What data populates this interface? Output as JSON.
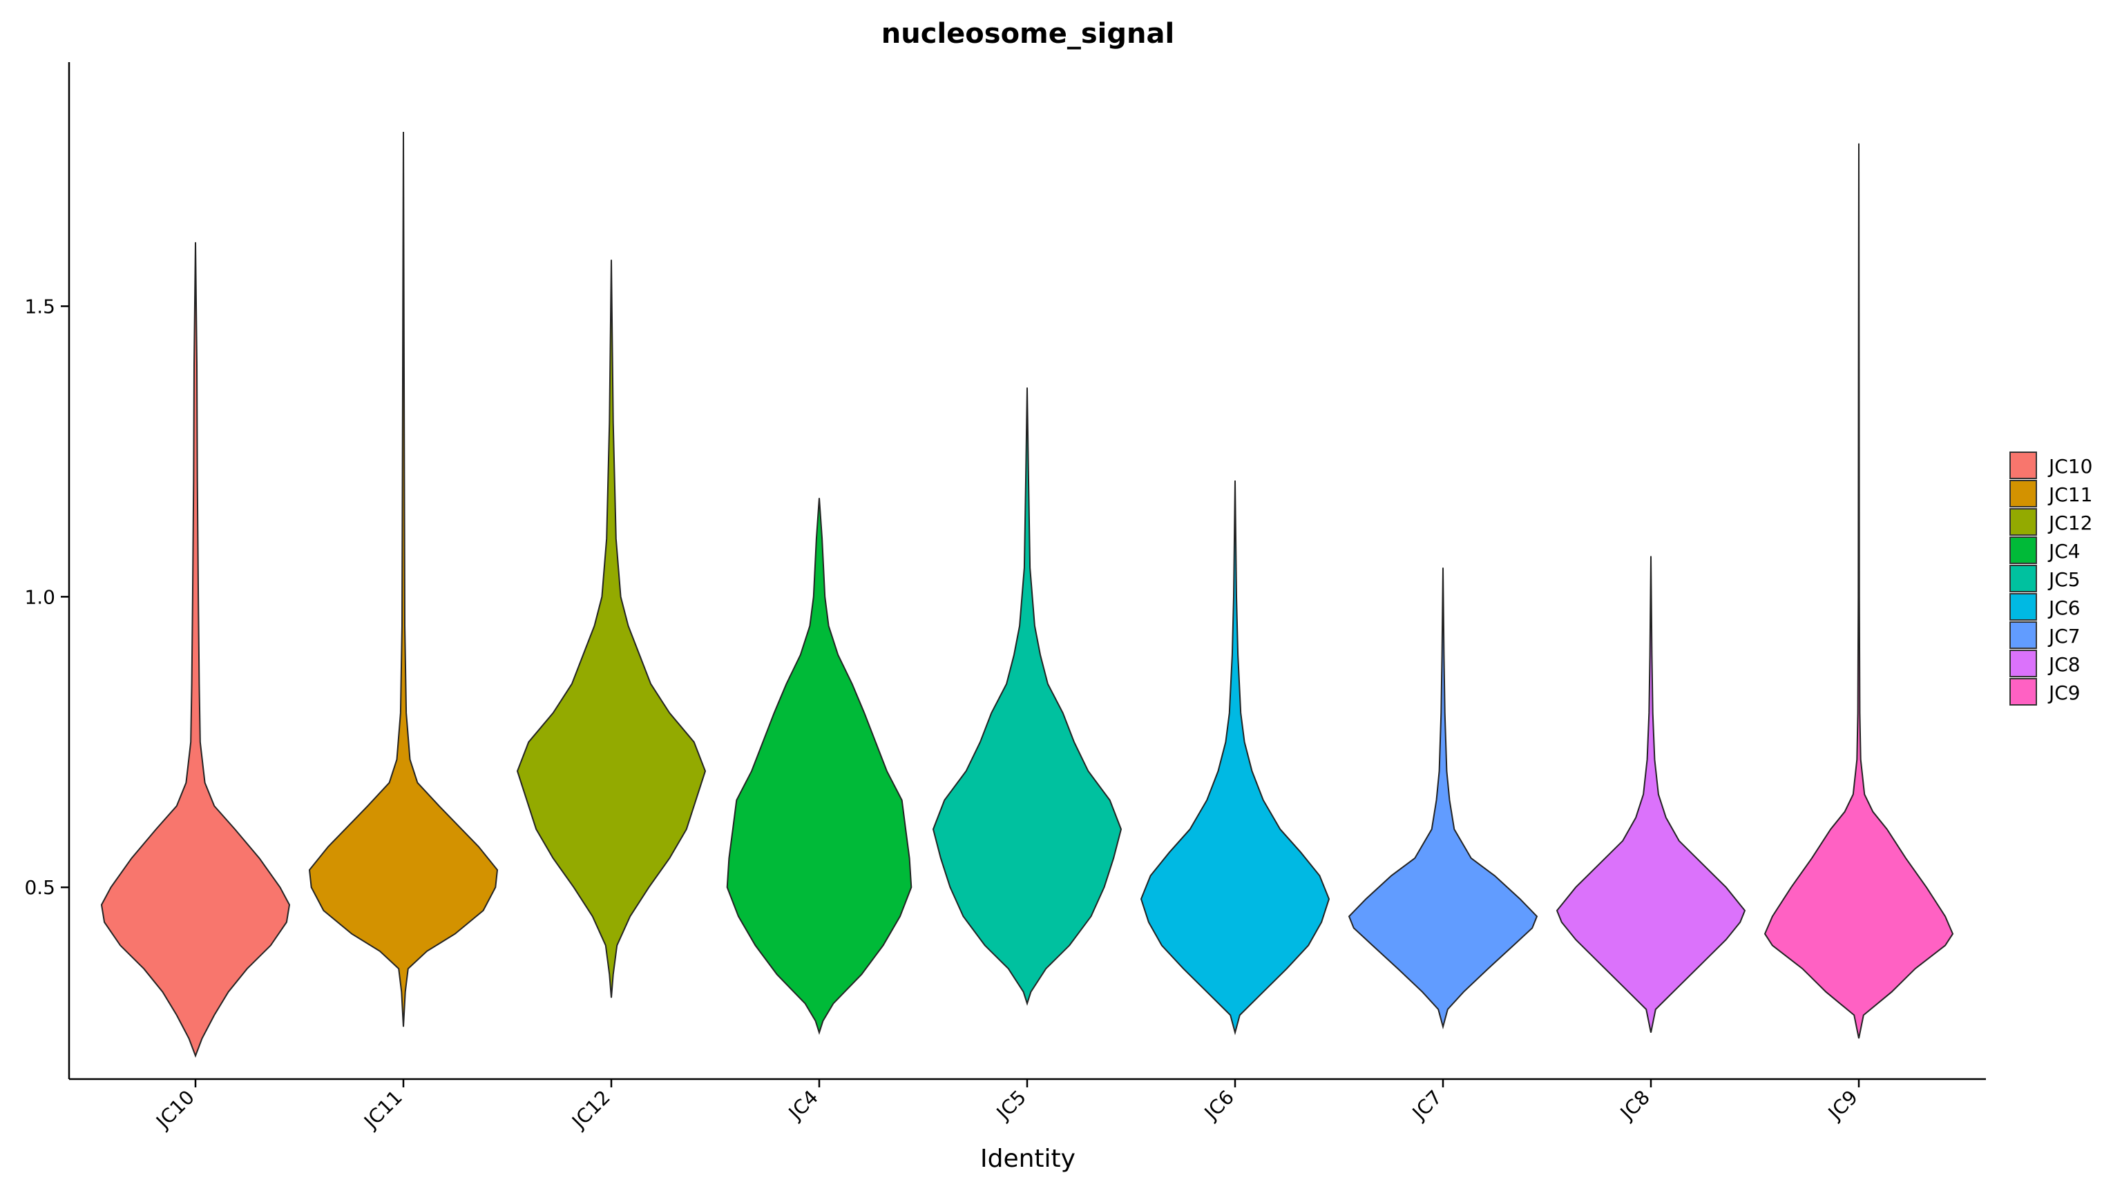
{
  "chart_data": {
    "type": "violin",
    "title": "nucleosome_signal",
    "xlabel": "Identity",
    "ylabel": "",
    "ylim": [
      0.17,
      1.92
    ],
    "yticks": [
      0.5,
      1.0,
      1.5
    ],
    "ytick_labels": [
      "0.5",
      "1.0",
      "1.5"
    ],
    "legend_position": "right",
    "grid": false,
    "categories": [
      "JC10",
      "JC11",
      "JC12",
      "JC4",
      "JC5",
      "JC6",
      "JC7",
      "JC8",
      "JC9"
    ],
    "colors": [
      "#F8766D",
      "#D39200",
      "#93AA00",
      "#00BA38",
      "#00C19F",
      "#00B9E3",
      "#619CFF",
      "#DB72FB",
      "#FF61C3"
    ],
    "legend": [
      "JC10",
      "JC11",
      "JC12",
      "JC4",
      "JC5",
      "JC6",
      "JC7",
      "JC8",
      "JC9"
    ],
    "series": [
      {
        "name": "JC10",
        "min": 0.21,
        "max": 1.61,
        "profile": [
          [
            0.21,
            0.0
          ],
          [
            0.24,
            0.07
          ],
          [
            0.28,
            0.2
          ],
          [
            0.32,
            0.35
          ],
          [
            0.36,
            0.55
          ],
          [
            0.4,
            0.8
          ],
          [
            0.44,
            0.97
          ],
          [
            0.47,
            1.0
          ],
          [
            0.5,
            0.9
          ],
          [
            0.55,
            0.68
          ],
          [
            0.6,
            0.42
          ],
          [
            0.64,
            0.2
          ],
          [
            0.68,
            0.1
          ],
          [
            0.75,
            0.05
          ],
          [
            0.85,
            0.04
          ],
          [
            1.0,
            0.03
          ],
          [
            1.2,
            0.02
          ],
          [
            1.4,
            0.015
          ],
          [
            1.61,
            0.0
          ]
        ]
      },
      {
        "name": "JC11",
        "min": 0.26,
        "max": 1.8,
        "profile": [
          [
            0.26,
            0.0
          ],
          [
            0.32,
            0.02
          ],
          [
            0.36,
            0.05
          ],
          [
            0.39,
            0.25
          ],
          [
            0.42,
            0.55
          ],
          [
            0.46,
            0.85
          ],
          [
            0.5,
            0.98
          ],
          [
            0.53,
            1.0
          ],
          [
            0.57,
            0.8
          ],
          [
            0.6,
            0.62
          ],
          [
            0.64,
            0.38
          ],
          [
            0.68,
            0.15
          ],
          [
            0.72,
            0.07
          ],
          [
            0.8,
            0.03
          ],
          [
            0.95,
            0.015
          ],
          [
            1.2,
            0.01
          ],
          [
            1.5,
            0.005
          ],
          [
            1.8,
            0.0
          ]
        ]
      },
      {
        "name": "JC12",
        "min": 0.31,
        "max": 1.58,
        "profile": [
          [
            0.31,
            0.0
          ],
          [
            0.35,
            0.02
          ],
          [
            0.4,
            0.06
          ],
          [
            0.45,
            0.2
          ],
          [
            0.5,
            0.4
          ],
          [
            0.55,
            0.62
          ],
          [
            0.6,
            0.8
          ],
          [
            0.65,
            0.9
          ],
          [
            0.7,
            1.0
          ],
          [
            0.75,
            0.88
          ],
          [
            0.8,
            0.62
          ],
          [
            0.85,
            0.42
          ],
          [
            0.9,
            0.3
          ],
          [
            0.95,
            0.18
          ],
          [
            1.0,
            0.1
          ],
          [
            1.1,
            0.05
          ],
          [
            1.3,
            0.02
          ],
          [
            1.58,
            0.0
          ]
        ]
      },
      {
        "name": "JC4",
        "min": 0.25,
        "max": 1.17,
        "profile": [
          [
            0.25,
            0.0
          ],
          [
            0.27,
            0.04
          ],
          [
            0.3,
            0.15
          ],
          [
            0.35,
            0.45
          ],
          [
            0.4,
            0.68
          ],
          [
            0.45,
            0.86
          ],
          [
            0.5,
            0.98
          ],
          [
            0.55,
            0.96
          ],
          [
            0.6,
            0.92
          ],
          [
            0.65,
            0.88
          ],
          [
            0.7,
            0.72
          ],
          [
            0.75,
            0.6
          ],
          [
            0.8,
            0.48
          ],
          [
            0.85,
            0.35
          ],
          [
            0.9,
            0.2
          ],
          [
            0.95,
            0.1
          ],
          [
            1.0,
            0.06
          ],
          [
            1.1,
            0.03
          ],
          [
            1.17,
            0.0
          ]
        ]
      },
      {
        "name": "JC5",
        "min": 0.3,
        "max": 1.36,
        "profile": [
          [
            0.3,
            0.0
          ],
          [
            0.32,
            0.04
          ],
          [
            0.36,
            0.2
          ],
          [
            0.4,
            0.45
          ],
          [
            0.45,
            0.68
          ],
          [
            0.5,
            0.82
          ],
          [
            0.55,
            0.92
          ],
          [
            0.6,
            1.0
          ],
          [
            0.65,
            0.88
          ],
          [
            0.7,
            0.65
          ],
          [
            0.75,
            0.5
          ],
          [
            0.8,
            0.38
          ],
          [
            0.85,
            0.22
          ],
          [
            0.9,
            0.14
          ],
          [
            0.95,
            0.08
          ],
          [
            1.05,
            0.03
          ],
          [
            1.2,
            0.015
          ],
          [
            1.36,
            0.0
          ]
        ]
      },
      {
        "name": "JC6",
        "min": 0.25,
        "max": 1.2,
        "profile": [
          [
            0.25,
            0.0
          ],
          [
            0.28,
            0.05
          ],
          [
            0.32,
            0.3
          ],
          [
            0.36,
            0.55
          ],
          [
            0.4,
            0.78
          ],
          [
            0.44,
            0.92
          ],
          [
            0.48,
            1.0
          ],
          [
            0.52,
            0.9
          ],
          [
            0.56,
            0.7
          ],
          [
            0.6,
            0.48
          ],
          [
            0.65,
            0.3
          ],
          [
            0.7,
            0.18
          ],
          [
            0.75,
            0.1
          ],
          [
            0.8,
            0.06
          ],
          [
            0.9,
            0.03
          ],
          [
            1.0,
            0.015
          ],
          [
            1.2,
            0.0
          ]
        ]
      },
      {
        "name": "JC7",
        "min": 0.26,
        "max": 1.05,
        "profile": [
          [
            0.26,
            0.0
          ],
          [
            0.29,
            0.05
          ],
          [
            0.32,
            0.22
          ],
          [
            0.36,
            0.48
          ],
          [
            0.4,
            0.75
          ],
          [
            0.43,
            0.95
          ],
          [
            0.45,
            1.0
          ],
          [
            0.48,
            0.82
          ],
          [
            0.52,
            0.55
          ],
          [
            0.55,
            0.3
          ],
          [
            0.6,
            0.12
          ],
          [
            0.65,
            0.07
          ],
          [
            0.7,
            0.04
          ],
          [
            0.8,
            0.02
          ],
          [
            0.9,
            0.01
          ],
          [
            1.05,
            0.0
          ]
        ]
      },
      {
        "name": "JC8",
        "min": 0.25,
        "max": 1.07,
        "profile": [
          [
            0.25,
            0.0
          ],
          [
            0.29,
            0.05
          ],
          [
            0.33,
            0.3
          ],
          [
            0.37,
            0.55
          ],
          [
            0.41,
            0.8
          ],
          [
            0.44,
            0.95
          ],
          [
            0.46,
            1.0
          ],
          [
            0.5,
            0.8
          ],
          [
            0.54,
            0.55
          ],
          [
            0.58,
            0.3
          ],
          [
            0.62,
            0.16
          ],
          [
            0.66,
            0.08
          ],
          [
            0.72,
            0.04
          ],
          [
            0.8,
            0.02
          ],
          [
            0.9,
            0.01
          ],
          [
            1.07,
            0.0
          ]
        ]
      },
      {
        "name": "JC9",
        "min": 0.24,
        "max": 1.78,
        "profile": [
          [
            0.24,
            0.0
          ],
          [
            0.28,
            0.05
          ],
          [
            0.32,
            0.35
          ],
          [
            0.36,
            0.6
          ],
          [
            0.4,
            0.92
          ],
          [
            0.42,
            1.0
          ],
          [
            0.45,
            0.92
          ],
          [
            0.5,
            0.72
          ],
          [
            0.55,
            0.5
          ],
          [
            0.6,
            0.3
          ],
          [
            0.63,
            0.15
          ],
          [
            0.66,
            0.06
          ],
          [
            0.72,
            0.02
          ],
          [
            0.8,
            0.01
          ],
          [
            1.0,
            0.005
          ],
          [
            1.4,
            0.003
          ],
          [
            1.78,
            0.0
          ]
        ]
      }
    ]
  }
}
